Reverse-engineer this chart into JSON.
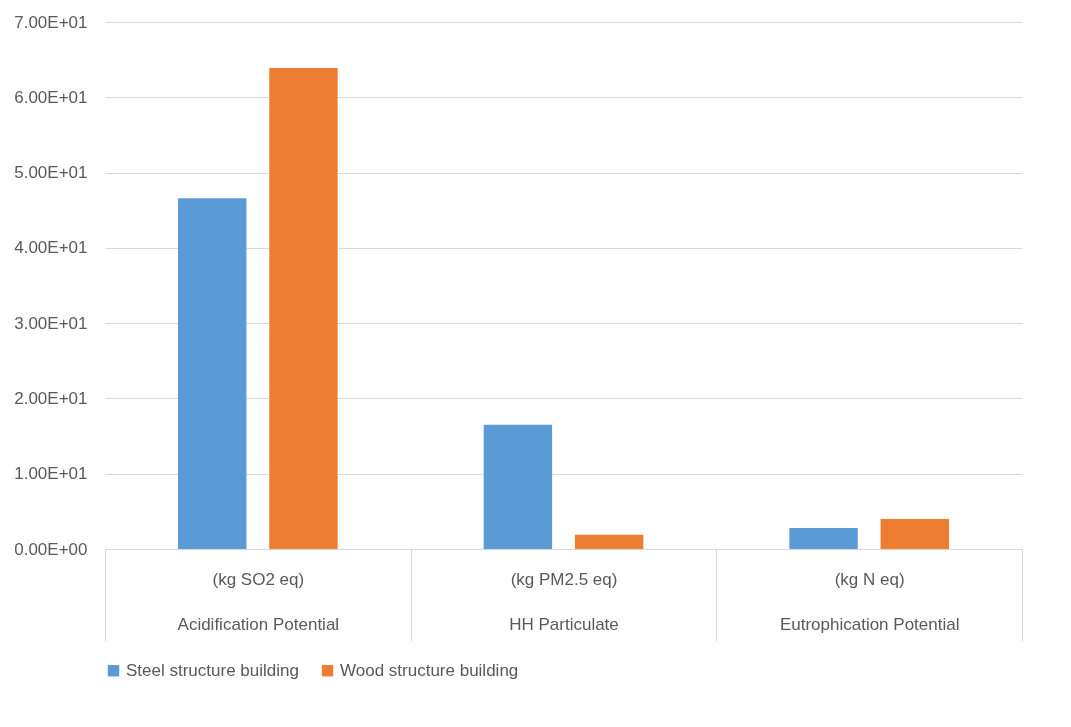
{
  "chart_data": {
    "type": "bar",
    "categories": [
      "(kg SO2 eq)\nAcidification Potential",
      "(kg PM2.5 eq)\nHH Particulate",
      "(kg N eq)\nEutrophication Potential"
    ],
    "series": [
      {
        "name": "Steel structure building",
        "color": "#5b9bd5",
        "values": [
          46.6,
          16.5,
          2.8
        ]
      },
      {
        "name": "Wood structure building",
        "color": "#ed7d31",
        "values": [
          63.9,
          1.9,
          4.0
        ]
      }
    ],
    "ylim": [
      0,
      70
    ],
    "yticks": [
      {
        "value": 0,
        "label": "0.00E+00"
      },
      {
        "value": 10,
        "label": "1.00E+01"
      },
      {
        "value": 20,
        "label": "2.00E+01"
      },
      {
        "value": 30,
        "label": "3.00E+01"
      },
      {
        "value": 40,
        "label": "4.00E+01"
      },
      {
        "value": 50,
        "label": "5.00E+01"
      },
      {
        "value": 60,
        "label": "6.00E+01"
      },
      {
        "value": 70,
        "label": "7.00E+01"
      }
    ],
    "grid": "y",
    "legend": "bottom"
  }
}
